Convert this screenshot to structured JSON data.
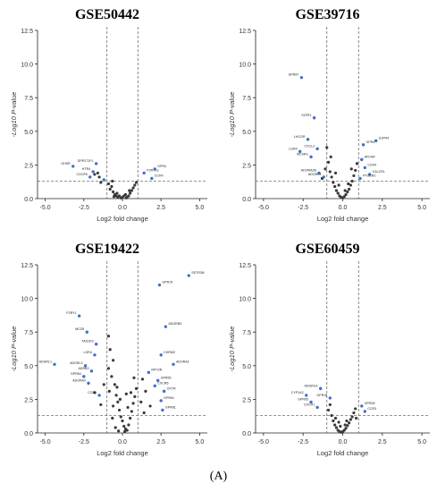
{
  "figure": {
    "caption": "(A)"
  },
  "colors": {
    "ns": "#3a3a3a",
    "sig": "#3f6fd1",
    "axis": "#222222",
    "grid": "#555555",
    "label": "#333333"
  },
  "chart_data": [
    {
      "type": "scatter",
      "title": "GSE50442",
      "xlabel": "Log2 fold change",
      "ylabel": "-Log10 P-value",
      "xlim": [
        -5.5,
        5.5
      ],
      "ylim": [
        0,
        12.5
      ],
      "xticks": [
        "-5.0",
        "-2.5",
        "0.0",
        "2.5",
        "5.0"
      ],
      "yticks": [
        "0.0",
        "2.5",
        "5.0",
        "7.5",
        "10.0",
        "12.5"
      ],
      "vlines": [
        -1,
        1
      ],
      "hline": 1.3,
      "significant": [
        {
          "x": -3.2,
          "y": 2.4,
          "label": "GHSR"
        },
        {
          "x": -1.7,
          "y": 2.6,
          "label": "GPR171FL"
        },
        {
          "x": -1.9,
          "y": 2.0,
          "label": "HTR4"
        },
        {
          "x": -2.1,
          "y": 1.6,
          "label": "CXCR5"
        },
        {
          "x": -1.2,
          "y": 1.4,
          "label": ""
        },
        {
          "x": 1.4,
          "y": 1.9,
          "label": "P2RY13"
        },
        {
          "x": 2.1,
          "y": 2.2,
          "label": "GPR4"
        },
        {
          "x": 1.9,
          "y": 1.5,
          "label": "CCR4"
        }
      ],
      "ns": [
        {
          "x": -1.5,
          "y": 1.6
        },
        {
          "x": -1.8,
          "y": 1.8
        },
        {
          "x": -1.6,
          "y": 1.9
        },
        {
          "x": -1.4,
          "y": 1.2
        },
        {
          "x": -0.9,
          "y": 1.1
        },
        {
          "x": -0.8,
          "y": 0.7
        },
        {
          "x": -0.7,
          "y": 0.9
        },
        {
          "x": -0.6,
          "y": 0.5
        },
        {
          "x": -0.5,
          "y": 0.3
        },
        {
          "x": -0.4,
          "y": 0.2
        },
        {
          "x": -0.3,
          "y": 0.1
        },
        {
          "x": -0.2,
          "y": 0.2
        },
        {
          "x": -0.1,
          "y": 0.05
        },
        {
          "x": 0.0,
          "y": 0.1
        },
        {
          "x": 0.1,
          "y": 0.2
        },
        {
          "x": 0.2,
          "y": 0.3
        },
        {
          "x": 0.3,
          "y": 0.1
        },
        {
          "x": 0.4,
          "y": 0.2
        },
        {
          "x": 0.5,
          "y": 0.4
        },
        {
          "x": 0.6,
          "y": 0.6
        },
        {
          "x": 0.7,
          "y": 0.8
        },
        {
          "x": 0.8,
          "y": 1.0
        },
        {
          "x": 0.9,
          "y": 1.2
        },
        {
          "x": -0.55,
          "y": 0.15
        },
        {
          "x": -0.35,
          "y": 0.4
        },
        {
          "x": 0.25,
          "y": 0.05
        },
        {
          "x": 0.45,
          "y": 0.6
        },
        {
          "x": -0.65,
          "y": 1.3
        }
      ]
    },
    {
      "type": "scatter",
      "title": "GSE39716",
      "xlabel": "Log2 fold change",
      "ylabel": "-Log10 P-value",
      "xlim": [
        -5.5,
        5.5
      ],
      "ylim": [
        0,
        12.5
      ],
      "xticks": [
        "-5.0",
        "-2.5",
        "0.0",
        "2.5",
        "5.0"
      ],
      "yticks": [
        "0.0",
        "2.5",
        "5.0",
        "7.5",
        "10.0",
        "12.5"
      ],
      "vlines": [
        -1,
        1
      ],
      "hline": 1.3,
      "significant": [
        {
          "x": -2.6,
          "y": 9.0,
          "label": "GPR87"
        },
        {
          "x": -1.8,
          "y": 6.0,
          "label": "S1PR1"
        },
        {
          "x": -2.2,
          "y": 4.4,
          "label": "LHCGR"
        },
        {
          "x": -2.7,
          "y": 3.5,
          "label": "LGR4"
        },
        {
          "x": -1.6,
          "y": 3.7,
          "label": "CXCL2"
        },
        {
          "x": -2.0,
          "y": 3.1,
          "label": "MCHR1"
        },
        {
          "x": -1.5,
          "y": 1.9,
          "label": "ADORA2B"
        },
        {
          "x": -1.2,
          "y": 1.6,
          "label": "ADGRL4"
        },
        {
          "x": 1.3,
          "y": 4.0,
          "label": "GPR4"
        },
        {
          "x": 2.1,
          "y": 4.3,
          "label": "S1PR4"
        },
        {
          "x": 1.2,
          "y": 2.9,
          "label": "APLNR"
        },
        {
          "x": 1.4,
          "y": 2.3,
          "label": "CCR4"
        },
        {
          "x": 1.7,
          "y": 1.8,
          "label": "CALCRL"
        },
        {
          "x": 1.1,
          "y": 1.5,
          "label": "PTGER2"
        }
      ],
      "ns": [
        {
          "x": -1.0,
          "y": 3.8
        },
        {
          "x": -0.9,
          "y": 2.7
        },
        {
          "x": -0.8,
          "y": 2.0
        },
        {
          "x": -0.7,
          "y": 1.6
        },
        {
          "x": -0.6,
          "y": 1.2
        },
        {
          "x": -0.5,
          "y": 0.9
        },
        {
          "x": -0.4,
          "y": 0.6
        },
        {
          "x": -0.3,
          "y": 0.4
        },
        {
          "x": -0.2,
          "y": 0.2
        },
        {
          "x": -0.1,
          "y": 0.1
        },
        {
          "x": 0.0,
          "y": 0.05
        },
        {
          "x": 0.1,
          "y": 0.15
        },
        {
          "x": 0.2,
          "y": 0.3
        },
        {
          "x": 0.3,
          "y": 0.5
        },
        {
          "x": 0.4,
          "y": 0.7
        },
        {
          "x": 0.5,
          "y": 1.0
        },
        {
          "x": 0.6,
          "y": 1.3
        },
        {
          "x": 0.7,
          "y": 1.7
        },
        {
          "x": 0.8,
          "y": 2.1
        },
        {
          "x": 0.9,
          "y": 2.6
        },
        {
          "x": -1.1,
          "y": 2.2
        },
        {
          "x": -1.3,
          "y": 1.5
        },
        {
          "x": -0.75,
          "y": 3.1
        },
        {
          "x": -0.45,
          "y": 1.9
        },
        {
          "x": 0.55,
          "y": 2.2
        },
        {
          "x": 0.35,
          "y": 1.1
        },
        {
          "x": -0.25,
          "y": 1.0
        },
        {
          "x": 0.15,
          "y": 0.6
        }
      ]
    },
    {
      "type": "scatter",
      "title": "GSE19422",
      "xlabel": "Log2 fold change",
      "ylabel": "-Log10 P-value",
      "xlim": [
        -5.5,
        5.5
      ],
      "ylim": [
        0,
        12.5
      ],
      "xticks": [
        "-5.0",
        "-2.5",
        "0.0",
        "2.5",
        "5.0"
      ],
      "yticks": [
        "0.0",
        "2.5",
        "5.0",
        "7.5",
        "10.0",
        "12.5"
      ],
      "vlines": [
        -1,
        1
      ],
      "hline": 1.3,
      "significant": [
        {
          "x": 4.3,
          "y": 11.7,
          "label": "SSTR3N"
        },
        {
          "x": 2.4,
          "y": 11.0,
          "label": "GPR19"
        },
        {
          "x": -2.8,
          "y": 8.7,
          "label": "P2RY1"
        },
        {
          "x": -2.3,
          "y": 7.5,
          "label": "MC2R"
        },
        {
          "x": 2.8,
          "y": 7.9,
          "label": "ADGRB3"
        },
        {
          "x": -1.7,
          "y": 6.6,
          "label": "TAS1R3"
        },
        {
          "x": -1.8,
          "y": 5.8,
          "label": "LGR4"
        },
        {
          "x": -4.4,
          "y": 5.1,
          "label": "ADGRL1"
        },
        {
          "x": -2.4,
          "y": 5.0,
          "label": "ADGRL3"
        },
        {
          "x": -2.0,
          "y": 4.6,
          "label": "ADRB3"
        },
        {
          "x": -2.5,
          "y": 4.2,
          "label": "GPR64"
        },
        {
          "x": -2.2,
          "y": 3.7,
          "label": "ADORA2"
        },
        {
          "x": 2.5,
          "y": 5.8,
          "label": "CHRM2"
        },
        {
          "x": 3.3,
          "y": 5.1,
          "label": "ADORA1"
        },
        {
          "x": 1.7,
          "y": 4.5,
          "label": "NPY2R"
        },
        {
          "x": 2.3,
          "y": 3.9,
          "label": "GPR55"
        },
        {
          "x": 2.1,
          "y": 3.5,
          "label": "CXCR6"
        },
        {
          "x": 2.7,
          "y": 3.1,
          "label": "OXTR"
        },
        {
          "x": -1.5,
          "y": 2.8,
          "label": "CCR1"
        },
        {
          "x": 2.5,
          "y": 2.4,
          "label": "GPR61"
        },
        {
          "x": 2.6,
          "y": 1.7,
          "label": "GPR81"
        }
      ],
      "ns": [
        {
          "x": -0.9,
          "y": 7.2
        },
        {
          "x": -0.8,
          "y": 6.2
        },
        {
          "x": -0.6,
          "y": 5.4
        },
        {
          "x": -0.9,
          "y": 4.8
        },
        {
          "x": -0.7,
          "y": 4.2
        },
        {
          "x": -0.5,
          "y": 3.6
        },
        {
          "x": -0.85,
          "y": 3.1
        },
        {
          "x": -0.4,
          "y": 2.8
        },
        {
          "x": -0.3,
          "y": 2.3
        },
        {
          "x": -0.6,
          "y": 2.0
        },
        {
          "x": -0.2,
          "y": 1.7
        },
        {
          "x": -0.1,
          "y": 1.2
        },
        {
          "x": 0.0,
          "y": 0.9
        },
        {
          "x": 0.1,
          "y": 0.5
        },
        {
          "x": 0.2,
          "y": 0.3
        },
        {
          "x": 0.3,
          "y": 0.2
        },
        {
          "x": 0.4,
          "y": 0.6
        },
        {
          "x": 0.5,
          "y": 1.1
        },
        {
          "x": 0.6,
          "y": 1.6
        },
        {
          "x": 0.7,
          "y": 2.2
        },
        {
          "x": 0.8,
          "y": 2.7
        },
        {
          "x": 0.9,
          "y": 3.3
        },
        {
          "x": 0.75,
          "y": 4.1
        },
        {
          "x": 0.55,
          "y": 3.0
        },
        {
          "x": -0.45,
          "y": 0.4
        },
        {
          "x": -0.25,
          "y": 0.15
        },
        {
          "x": 0.15,
          "y": 0.1
        },
        {
          "x": -0.65,
          "y": 1.1
        },
        {
          "x": 0.35,
          "y": 1.9
        },
        {
          "x": -0.15,
          "y": 2.5
        },
        {
          "x": 0.25,
          "y": 2.9
        },
        {
          "x": -0.35,
          "y": 3.4
        },
        {
          "x": 1.3,
          "y": 4.0
        },
        {
          "x": 1.5,
          "y": 3.1
        },
        {
          "x": 1.2,
          "y": 2.3
        },
        {
          "x": -1.2,
          "y": 3.6
        },
        {
          "x": -1.4,
          "y": 2.1
        },
        {
          "x": 1.8,
          "y": 2.0
        },
        {
          "x": -1.8,
          "y": 3.0
        },
        {
          "x": 1.4,
          "y": 1.5
        }
      ]
    },
    {
      "type": "scatter",
      "title": "GSE60459",
      "xlabel": "Log2 fold change",
      "ylabel": "-Log10 P-value",
      "xlim": [
        -5.5,
        5.5
      ],
      "ylim": [
        0,
        12.5
      ],
      "xticks": [
        "-5.0",
        "-2.5",
        "0.0",
        "2.5",
        "5.0"
      ],
      "yticks": [
        "0.0",
        "2.5",
        "5.0",
        "7.5",
        "10.0",
        "12.5"
      ],
      "vlines": [
        -1,
        1
      ],
      "hline": 1.3,
      "significant": [
        {
          "x": -1.4,
          "y": 3.3,
          "label": "ADGRG1"
        },
        {
          "x": -2.3,
          "y": 2.8,
          "label": "CYP1A2"
        },
        {
          "x": -2.0,
          "y": 2.3,
          "label": "GPR65"
        },
        {
          "x": -1.6,
          "y": 1.9,
          "label": "CXCR1"
        },
        {
          "x": -0.8,
          "y": 2.6,
          "label": "GPR18"
        },
        {
          "x": 1.2,
          "y": 2.0,
          "label": "GPR39"
        },
        {
          "x": 1.4,
          "y": 1.6,
          "label": "CCR3"
        }
      ],
      "ns": [
        {
          "x": -0.9,
          "y": 1.7
        },
        {
          "x": -0.7,
          "y": 1.3
        },
        {
          "x": -0.6,
          "y": 0.9
        },
        {
          "x": -0.5,
          "y": 0.6
        },
        {
          "x": -0.4,
          "y": 0.4
        },
        {
          "x": -0.3,
          "y": 0.2
        },
        {
          "x": -0.2,
          "y": 0.1
        },
        {
          "x": -0.1,
          "y": 0.05
        },
        {
          "x": 0.0,
          "y": 0.1
        },
        {
          "x": 0.1,
          "y": 0.2
        },
        {
          "x": 0.2,
          "y": 0.35
        },
        {
          "x": 0.3,
          "y": 0.55
        },
        {
          "x": 0.4,
          "y": 0.75
        },
        {
          "x": 0.5,
          "y": 1.0
        },
        {
          "x": 0.6,
          "y": 1.2
        },
        {
          "x": 0.7,
          "y": 1.5
        },
        {
          "x": 0.8,
          "y": 1.8
        },
        {
          "x": -0.45,
          "y": 1.1
        },
        {
          "x": 0.25,
          "y": 0.9
        },
        {
          "x": -0.15,
          "y": 0.5
        },
        {
          "x": 0.15,
          "y": 0.6
        },
        {
          "x": -0.8,
          "y": 2.1
        },
        {
          "x": 0.85,
          "y": 1.1
        },
        {
          "x": -0.25,
          "y": 0.8
        }
      ]
    }
  ]
}
